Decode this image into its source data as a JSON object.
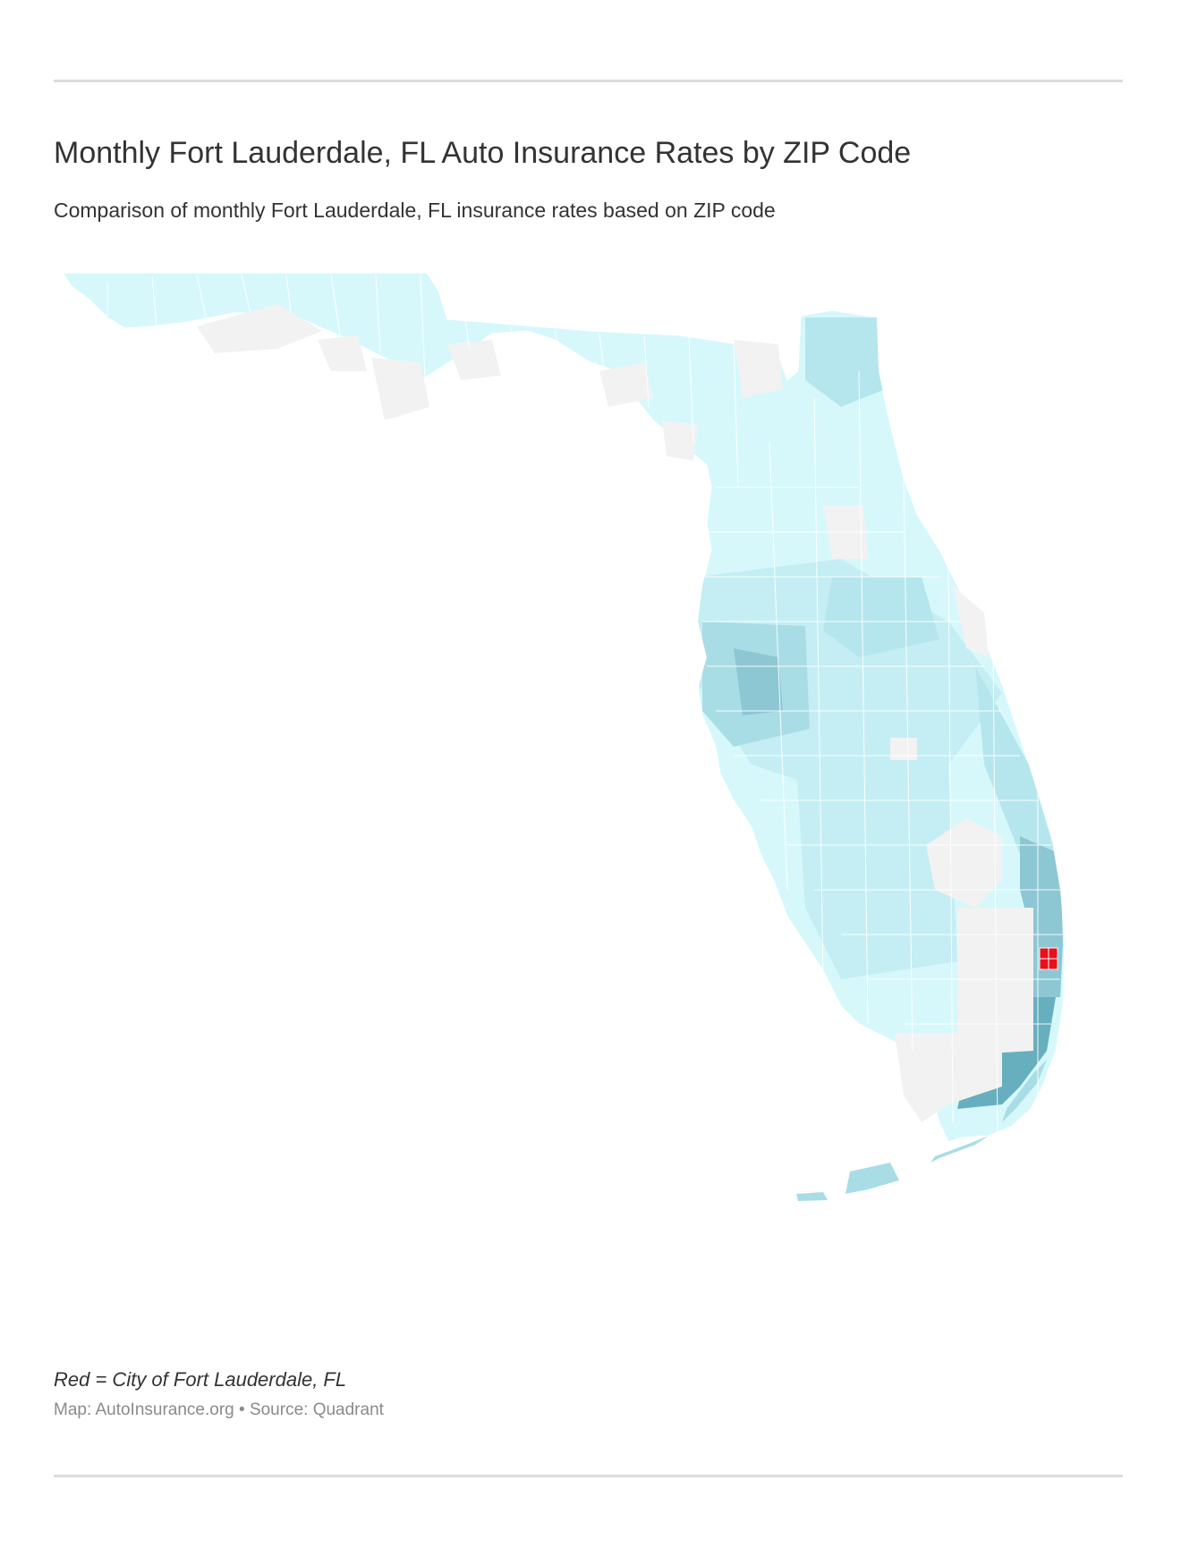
{
  "header": {
    "title": "Monthly Fort Lauderdale, FL Auto Insurance Rates by ZIP Code",
    "subtitle": "Comparison of monthly Fort Lauderdale, FL insurance rates based on ZIP code"
  },
  "map": {
    "region": "Florida",
    "highlight_color": "#e8101a",
    "color_scale": [
      "#d6f8fb",
      "#c4eef3",
      "#a9dde6",
      "#8cc7d3",
      "#67afbf"
    ],
    "no_data_color": "#f2f2f2",
    "boundary_color": "#ffffff"
  },
  "footer": {
    "legend_note": "Red = City of Fort Lauderdale, FL",
    "credit": "Map: AutoInsurance.org • Source: Quadrant"
  }
}
